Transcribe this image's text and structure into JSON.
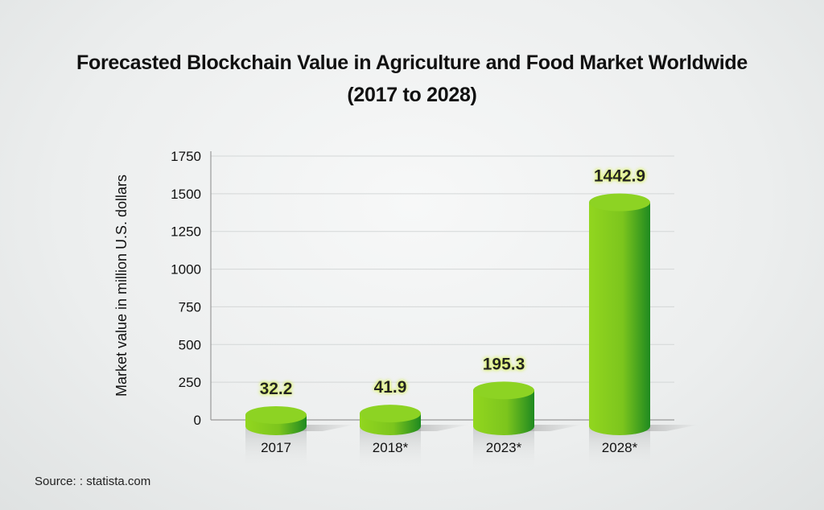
{
  "chart_data": {
    "type": "bar",
    "title_line1": "Forecasted Blockchain Value in Agriculture and Food Market Worldwide",
    "title_line2": "(2017 to 2028)",
    "xlabel": "",
    "ylabel": "Market value in million U.S. dollars",
    "categories": [
      "2017",
      "2018*",
      "2023*",
      "2028*"
    ],
    "values": [
      32.2,
      41.9,
      195.3,
      1442.9
    ],
    "value_labels": [
      "32.2",
      "41.9",
      "195.3",
      "1442.9"
    ],
    "ylim": [
      0,
      1750
    ],
    "yticks": [
      "0",
      "250",
      "500",
      "750",
      "1000",
      "1250",
      "1500",
      "1750"
    ],
    "grid": true,
    "bar_colors": {
      "light": "#8fd41e",
      "dark": "#1e8a1e"
    }
  },
  "source": "Source: : statista.com"
}
